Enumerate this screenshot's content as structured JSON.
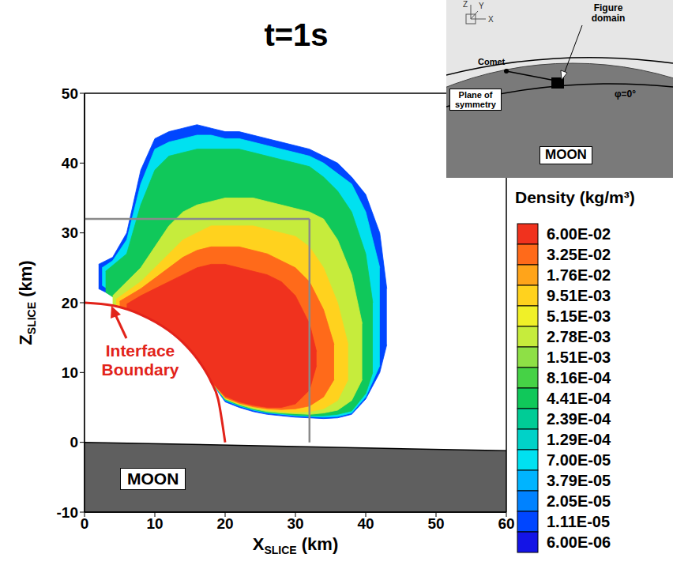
{
  "chart_data": {
    "type": "contour",
    "title": "t=1s",
    "x_label": "X SLICE (km)",
    "y_label": "Z SLICE (km)",
    "xlim": [
      0,
      60
    ],
    "ylim": [
      -10,
      50
    ],
    "xticks": [
      0,
      10,
      20,
      30,
      40,
      50,
      60
    ],
    "yticks": [
      -10,
      0,
      10,
      20,
      30,
      40,
      50
    ],
    "grid": false,
    "colorbar": {
      "title": "Density (kg/m³)",
      "ticks": [
        {
          "value": 0.06,
          "label": "6.00E-02"
        },
        {
          "value": 0.0325,
          "label": "3.25E-02"
        },
        {
          "value": 0.0176,
          "label": "1.76E-02"
        },
        {
          "value": 0.00951,
          "label": "9.51E-03"
        },
        {
          "value": 0.00515,
          "label": "5.15E-03"
        },
        {
          "value": 0.00278,
          "label": "2.78E-03"
        },
        {
          "value": 0.00151,
          "label": "1.51E-03"
        },
        {
          "value": 0.000816,
          "label": "8.16E-04"
        },
        {
          "value": 0.000441,
          "label": "4.41E-04"
        },
        {
          "value": 0.000239,
          "label": "2.39E-04"
        },
        {
          "value": 0.000129,
          "label": "1.29E-04"
        },
        {
          "value": 7e-05,
          "label": "7.00E-05"
        },
        {
          "value": 3.79e-05,
          "label": "3.79E-05"
        },
        {
          "value": 2.05e-05,
          "label": "2.05E-05"
        },
        {
          "value": 1.11e-05,
          "label": "1.11E-05"
        },
        {
          "value": 6e-06,
          "label": "6.00E-06"
        }
      ],
      "colors": [
        "#f0321e",
        "#ff6a1a",
        "#ffa41a",
        "#ffd21e",
        "#f0f028",
        "#c6ec3c",
        "#8ee046",
        "#46d246",
        "#10c85a",
        "#00cc96",
        "#00d2c8",
        "#00e1f0",
        "#00b4ff",
        "#0082ff",
        "#0046ff",
        "#1414e6"
      ]
    },
    "bands": [
      {
        "level": 1.11e-05,
        "x": [
          2,
          4,
          6,
          8,
          10,
          12,
          14,
          16,
          18,
          20,
          22,
          24,
          26,
          28,
          30,
          32,
          34,
          36,
          38,
          40,
          42,
          43
        ],
        "low": [
          22,
          21,
          19.8,
          18.4,
          17.3,
          16,
          14.3,
          12,
          8.7,
          5.8,
          5,
          4.4,
          4,
          3.8,
          3.6,
          3.5,
          3.4,
          3.5,
          4,
          6.2,
          10,
          14
        ],
        "high": [
          25.5,
          26.5,
          30,
          39,
          43.5,
          44.5,
          45,
          45.5,
          45,
          44.5,
          44.5,
          44,
          43.5,
          43,
          42.5,
          42,
          41,
          40,
          38,
          35.5,
          30,
          22
        ]
      },
      {
        "level": 7e-05,
        "x": [
          2.5,
          4,
          6,
          8,
          10,
          12,
          14,
          16,
          18,
          20,
          22,
          24,
          26,
          28,
          30,
          32,
          34,
          36,
          38,
          40,
          42
        ],
        "low": [
          22.5,
          21.5,
          20,
          18.4,
          17.3,
          16,
          14.3,
          12,
          8.7,
          6,
          5.2,
          4.6,
          4.2,
          4,
          3.8,
          3.7,
          3.6,
          3.7,
          4.2,
          6.5,
          11
        ],
        "high": [
          25,
          26,
          29,
          37,
          42,
          43,
          43.5,
          44,
          44,
          43.5,
          43.5,
          43,
          42.5,
          42,
          41.5,
          41,
          40,
          38.5,
          37,
          33,
          25
        ]
      },
      {
        "level": 0.000441,
        "x": [
          3,
          6,
          8,
          10,
          12,
          14,
          16,
          18,
          20,
          22,
          24,
          26,
          28,
          30,
          32,
          34,
          36,
          38,
          40,
          41
        ],
        "low": [
          21.5,
          19.5,
          18.3,
          17.3,
          16,
          14.3,
          12,
          8.7,
          6.1,
          5.3,
          4.7,
          4.3,
          4.1,
          3.9,
          3.8,
          3.8,
          4,
          4.5,
          7,
          10
        ],
        "high": [
          24.5,
          27,
          34,
          39,
          41,
          41.5,
          42,
          42,
          42,
          42,
          41.5,
          41,
          40.5,
          40,
          39.5,
          38,
          36,
          33,
          27,
          20
        ]
      },
      {
        "level": 0.00278,
        "x": [
          4,
          8,
          10,
          12,
          14,
          16,
          18,
          20,
          22,
          24,
          26,
          28,
          30,
          32,
          34,
          36,
          38,
          39.5
        ],
        "low": [
          19.6,
          18.3,
          17.3,
          16,
          14.3,
          12,
          8.7,
          6.2,
          5.4,
          4.8,
          4.4,
          4.2,
          4.1,
          4,
          4.2,
          4.6,
          6,
          9
        ],
        "high": [
          21,
          25,
          28,
          31,
          33,
          34,
          34.5,
          35,
          35,
          35,
          34.5,
          34,
          33.5,
          33,
          32,
          29,
          24,
          17
        ]
      },
      {
        "level": 0.00951,
        "x": [
          4.5,
          8,
          10,
          12,
          14,
          16,
          18,
          20,
          22,
          24,
          26,
          28,
          30,
          32,
          34,
          36,
          37.5
        ],
        "low": [
          19.5,
          18.3,
          17.3,
          16,
          14.3,
          12,
          8.7,
          6.3,
          5.5,
          5,
          4.6,
          4.4,
          4.3,
          4.4,
          4.8,
          6,
          9
        ],
        "high": [
          20.5,
          23,
          25,
          27,
          29,
          30,
          31,
          31,
          31,
          31,
          30.5,
          30,
          29.5,
          28,
          25,
          20,
          14
        ]
      },
      {
        "level": 0.0325,
        "x": [
          5,
          8,
          10,
          12,
          14,
          16,
          18,
          20,
          22,
          24,
          26,
          28,
          30,
          32,
          34,
          35.5
        ],
        "low": [
          19.4,
          18.3,
          17.3,
          16,
          14.3,
          12,
          8.7,
          6.4,
          5.6,
          5.1,
          4.8,
          4.7,
          4.8,
          5.2,
          6.5,
          9
        ],
        "high": [
          20.2,
          22,
          23.5,
          25,
          26.5,
          27.5,
          28,
          28,
          28,
          27.5,
          27,
          26,
          25,
          23,
          19,
          14
        ]
      },
      {
        "level": 0.06,
        "x": [
          6,
          8,
          10,
          12,
          14,
          16,
          18,
          20,
          22,
          24,
          26,
          28,
          30,
          32,
          33
        ],
        "low": [
          19.1,
          18.3,
          17.3,
          16,
          14.3,
          12,
          8.7,
          6.6,
          5.8,
          5.3,
          5,
          5,
          5.5,
          7.5,
          11
        ],
        "high": [
          19.8,
          21,
          22,
          23,
          24,
          25,
          25.5,
          25.5,
          25,
          24.5,
          24,
          23,
          21,
          17,
          13
        ]
      }
    ],
    "interface_boundary": {
      "label": "Interface Boundary",
      "color": "#e2231a",
      "x": [
        0,
        4,
        8,
        12,
        14,
        16,
        18,
        19,
        20
      ],
      "z": [
        20,
        19.6,
        18.3,
        16,
        14.3,
        12,
        8.7,
        6.2,
        0
      ]
    },
    "moon": {
      "label": "MOON",
      "x": [
        0,
        60
      ],
      "surface": [
        0,
        -1.2
      ]
    },
    "domain_box": {
      "x": [
        0,
        32
      ],
      "z": [
        0,
        32
      ]
    },
    "inset": {
      "figure_domain": "Figure domain",
      "comet": "Comet",
      "plane": "Plane of symmetry",
      "phi": "φ=0°",
      "moon": "MOON",
      "axes": [
        "X",
        "Y",
        "Z"
      ]
    }
  }
}
